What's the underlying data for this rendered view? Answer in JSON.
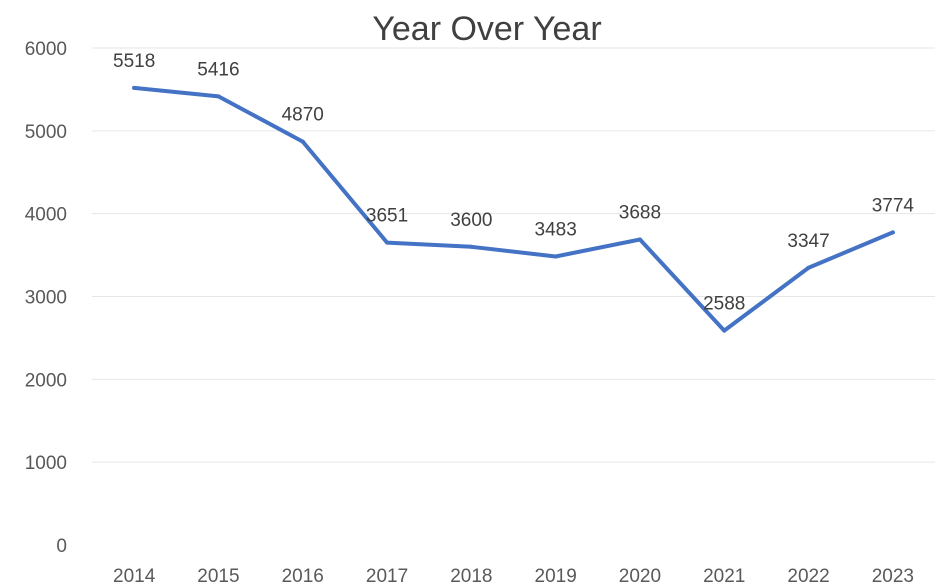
{
  "chart_data": {
    "type": "line",
    "title": "Year Over Year",
    "xlabel": "",
    "ylabel": "",
    "categories": [
      "2014",
      "2015",
      "2016",
      "2017",
      "2018",
      "2019",
      "2020",
      "2021",
      "2022",
      "2023"
    ],
    "series": [
      {
        "values": [
          5518,
          5416,
          4870,
          3651,
          3600,
          3483,
          3688,
          2588,
          3347,
          3774
        ],
        "color": "#4472c4"
      }
    ],
    "ylim": [
      0,
      6000
    ],
    "yticks": [
      0,
      1000,
      2000,
      3000,
      4000,
      5000,
      6000
    ],
    "grid": true,
    "legend": "none",
    "data_labels": [
      "5518",
      "5416",
      "4870",
      "3651",
      "3600",
      "3483",
      "3688",
      "2588",
      "3347",
      "3774"
    ]
  },
  "colors": {
    "line": "#4472c4",
    "grid": "#e6e6e6",
    "text": "#404040",
    "axis_text": "#595959"
  }
}
